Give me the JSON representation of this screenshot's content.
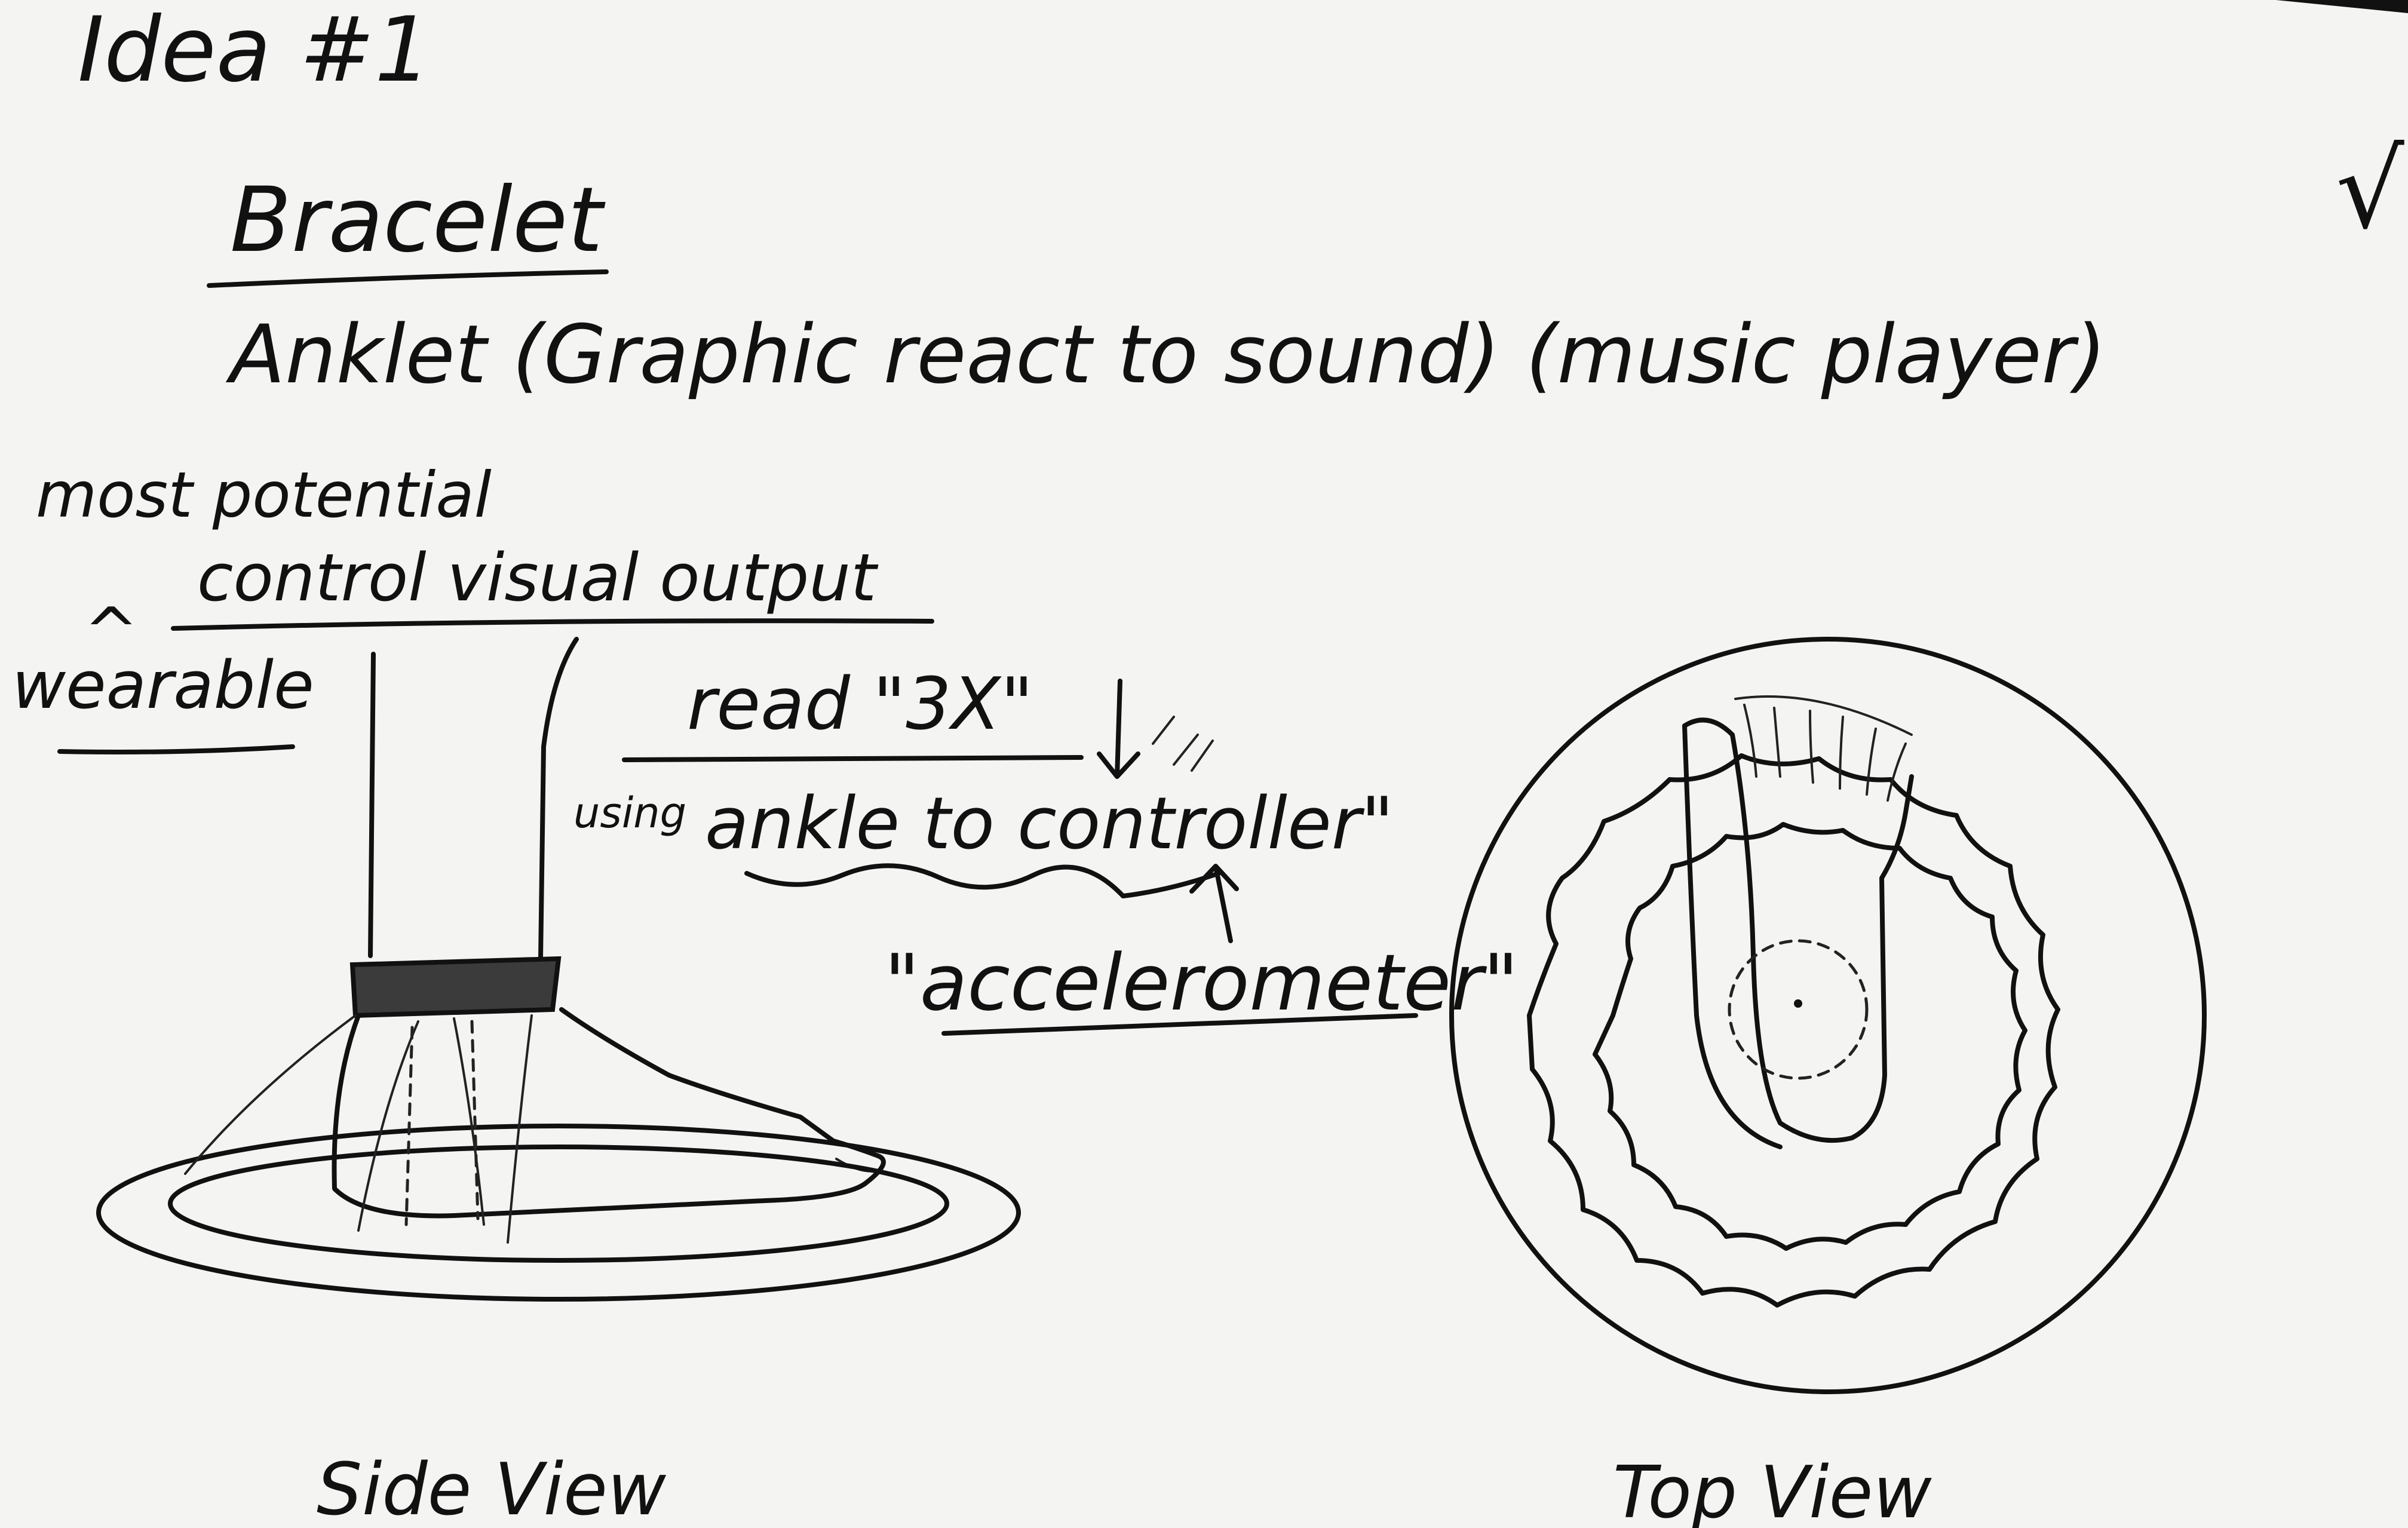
{
  "title": "Idea #1",
  "option_bracelet": "Bracelet",
  "option_anklet": "Anklet (Graphic react to sound) (music player)",
  "note_potential": "most potential",
  "note_wearable": "wearable",
  "note_control": "control visual output",
  "note_read": "read \"3X\"",
  "note_using": "using",
  "note_controller": "ankle to controller\"",
  "note_accelerometer": "\"accelerometer\"",
  "label_side_view": "Side View",
  "label_top_view": "Top View",
  "check_mark": "√"
}
